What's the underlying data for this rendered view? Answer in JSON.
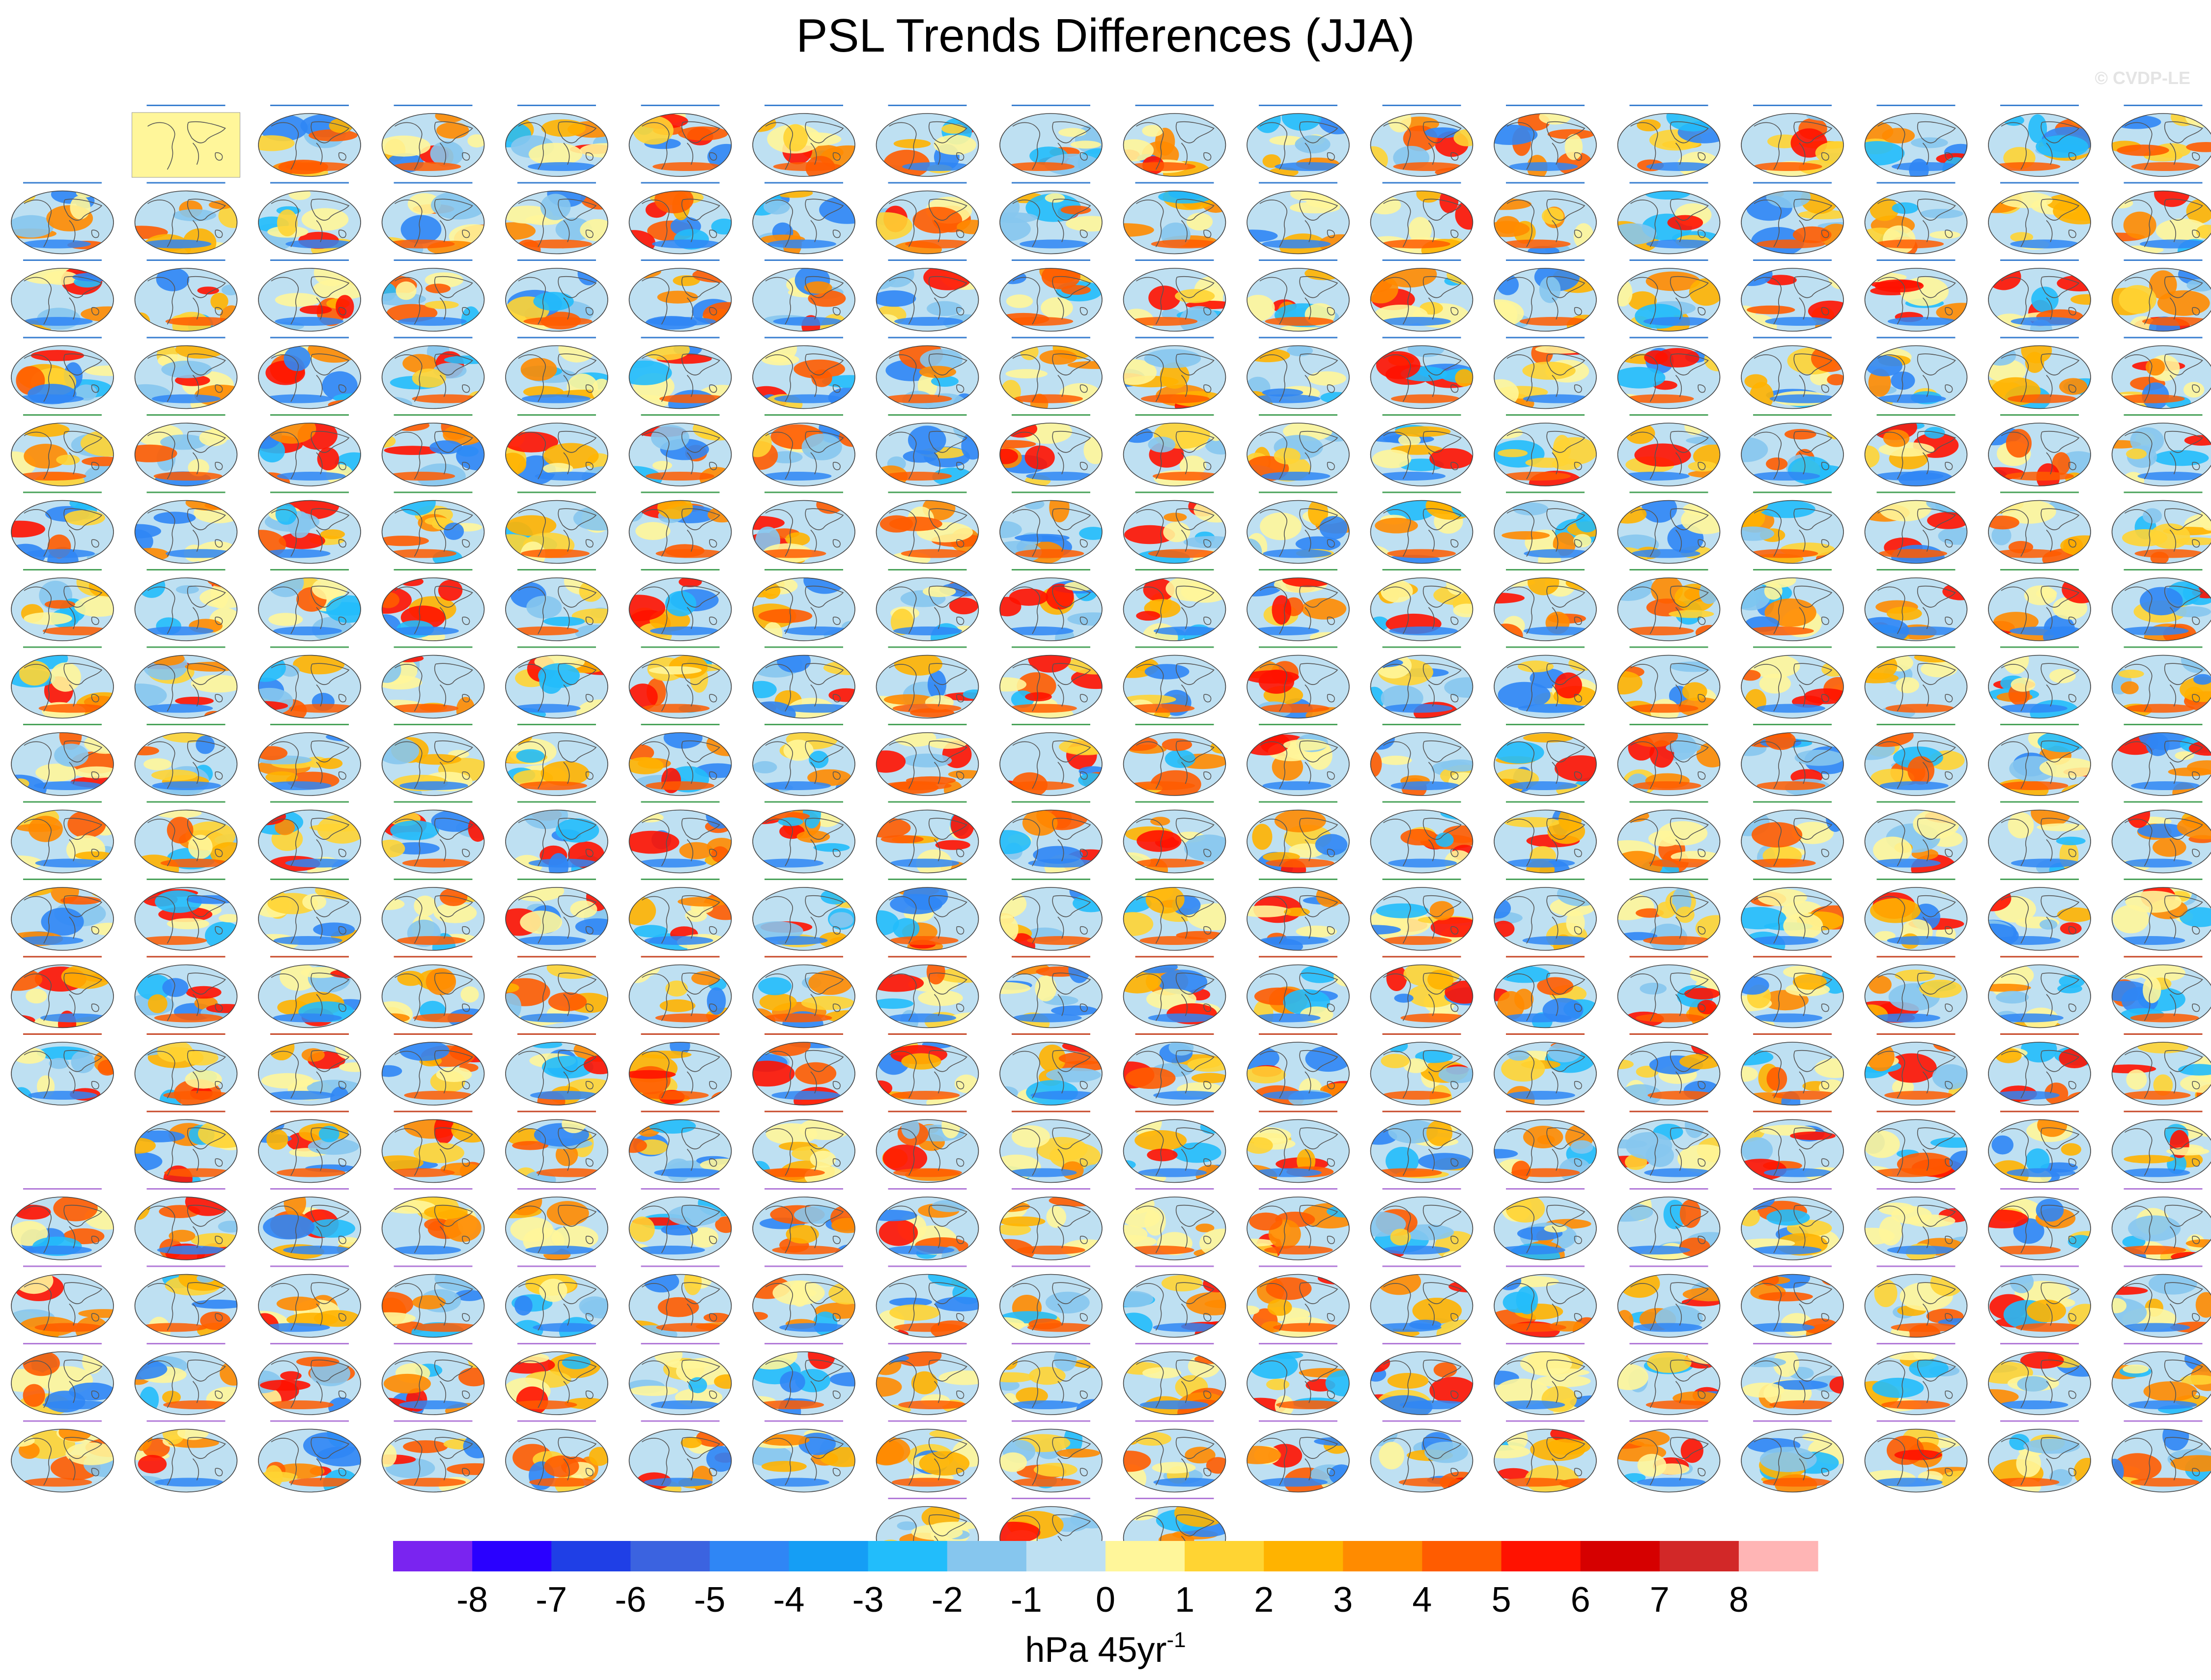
{
  "title": "PSL Trends Differences (JJA)",
  "credit": "© CVDP-LE",
  "chart_data": {
    "type": "heatmap",
    "title": "PSL Trends Differences (JJA)",
    "description": "Panel grid of global maps, one per ensemble member, each shaded by the sea level pressure trend difference",
    "panel_layout": {
      "columns": 18,
      "rows": 19,
      "row_panel_counts": [
        17,
        18,
        18,
        18,
        18,
        18,
        18,
        18,
        18,
        18,
        18,
        18,
        18,
        17,
        18,
        18,
        18,
        18,
        3
      ],
      "total_panels": 325
    },
    "colorbar": {
      "colors": [
        "#7a24f0",
        "#2a00ff",
        "#1f3fe6",
        "#3b63e0",
        "#2f86f5",
        "#159ef5",
        "#22bdfb",
        "#86c6ee",
        "#bee0f2",
        "#fff69a",
        "#ffd433",
        "#ffb300",
        "#ff8b00",
        "#ff5c00",
        "#ff1200",
        "#d60000",
        "#d22828",
        "#ffb5b5"
      ],
      "tick_labels": [
        "-8",
        "-7",
        "-6",
        "-5",
        "-4",
        "-3",
        "-2",
        "-1",
        "0",
        "1",
        "2",
        "3",
        "4",
        "5",
        "6",
        "7",
        "8"
      ],
      "unit_label": "hPa 45yr",
      "unit_exponent": "-1"
    }
  }
}
